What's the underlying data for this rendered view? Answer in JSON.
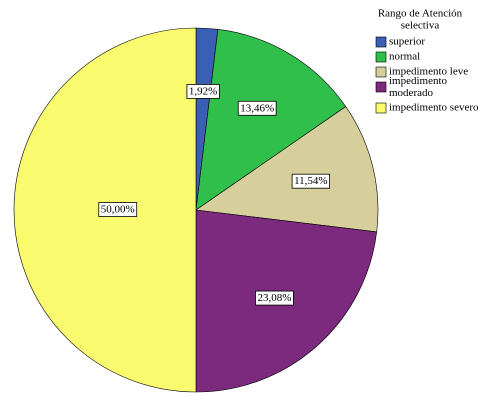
{
  "chart_data": {
    "type": "pie",
    "legend_title": [
      "Rango de Atención",
      "selectiva"
    ],
    "categories": [
      "superior",
      "normal",
      "impedimento leve",
      "impedimento moderado",
      "impedimento severo"
    ],
    "values": [
      1.92,
      13.46,
      11.54,
      23.08,
      50.0
    ],
    "value_labels": [
      "1,92%",
      "13,46%",
      "11,54%",
      "23,08%",
      "50,00%"
    ],
    "colors": [
      "#3a5fb5",
      "#2fbf4a",
      "#d6cf9b",
      "#7b2a7d",
      "#fafa6e"
    ],
    "legend": "top-right"
  }
}
